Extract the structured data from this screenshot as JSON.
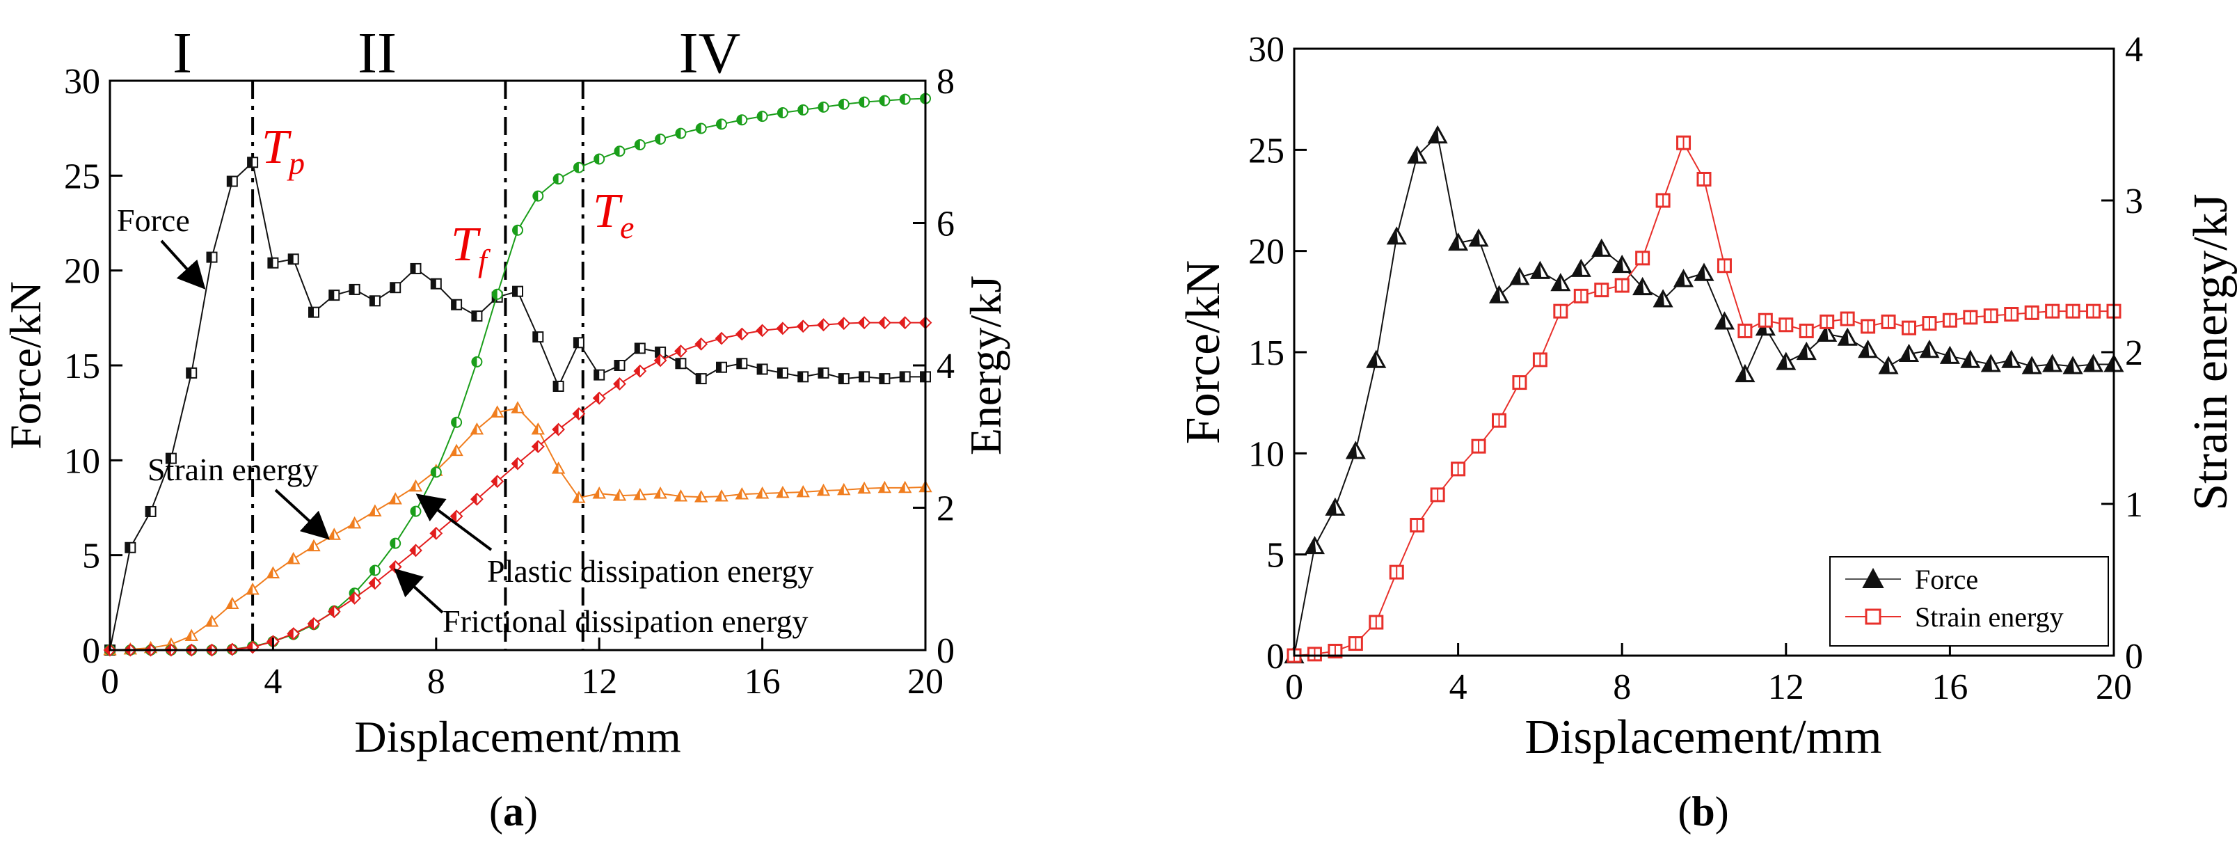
{
  "colors": {
    "force": "#111111",
    "strain": "#f07d1e",
    "plastic": "#1a9e1a",
    "friction": "#e21c1c",
    "strain_b": "#e8302b",
    "annotation_red": "#ee0000"
  },
  "panel_a": {
    "caption": {
      "open": "(",
      "letter": "a",
      "close": ")"
    },
    "regions": [
      "I",
      "II",
      "IV"
    ],
    "annotations": {
      "tp": {
        "main": "T",
        "sub": "p"
      },
      "tf": {
        "main": "T",
        "sub": "f"
      },
      "te": {
        "main": "T",
        "sub": "e"
      },
      "force": "Force",
      "strain": "Strain energy",
      "plastic": "Plastic dissipation energy",
      "friction": "Frictional dissipation energy"
    }
  },
  "panel_b": {
    "caption": {
      "open": "(",
      "letter": "b",
      "close": ")"
    },
    "legend": {
      "force": "Force",
      "strain": "Strain energy"
    }
  },
  "chart_data": [
    {
      "type": "line",
      "panel": "a",
      "xlabel": "Displacement/mm",
      "ylabel": "Force/kN",
      "y2label": "Energy/kJ",
      "xlim": [
        0,
        20
      ],
      "ylim": [
        0,
        30
      ],
      "y2lim": [
        0,
        8
      ],
      "xticks": [
        0,
        4,
        8,
        12,
        16,
        20
      ],
      "yticks": [
        0,
        5,
        10,
        15,
        20,
        25,
        30
      ],
      "y2ticks": [
        0,
        2,
        4,
        6,
        8
      ],
      "stage_boundaries": [
        3.5,
        9.7,
        11.6
      ],
      "series": [
        {
          "name": "Force",
          "axis": "left",
          "x": [
            0,
            0.5,
            1.0,
            1.5,
            2.0,
            2.5,
            3.0,
            3.5,
            4.0,
            4.5,
            5.0,
            5.5,
            6.0,
            6.5,
            7.0,
            7.5,
            8.0,
            8.5,
            9.0,
            9.5,
            10.0,
            10.5,
            11.0,
            11.5,
            12.0,
            12.5,
            13.0,
            13.5,
            14.0,
            14.5,
            15.0,
            15.5,
            16.0,
            16.5,
            17.0,
            17.5,
            18.0,
            18.5,
            19.0,
            19.5,
            20.0
          ],
          "y": [
            0,
            5.4,
            7.3,
            10.1,
            14.6,
            20.7,
            24.7,
            25.7,
            20.4,
            20.6,
            17.8,
            18.7,
            19.0,
            18.4,
            19.1,
            20.1,
            19.3,
            18.2,
            17.6,
            18.6,
            18.9,
            16.5,
            13.9,
            16.2,
            14.5,
            15.0,
            15.9,
            15.7,
            15.1,
            14.3,
            14.9,
            15.1,
            14.8,
            14.6,
            14.4,
            14.6,
            14.3,
            14.4,
            14.3,
            14.4,
            14.4
          ]
        },
        {
          "name": "Strain energy",
          "axis": "right",
          "x": [
            0,
            0.5,
            1.0,
            1.5,
            2.0,
            2.5,
            3.0,
            3.5,
            4.0,
            4.5,
            5.0,
            5.5,
            6.0,
            6.5,
            7.0,
            7.5,
            8.0,
            8.5,
            9.0,
            9.5,
            10.0,
            10.5,
            11.0,
            11.5,
            12.0,
            12.5,
            13.0,
            13.5,
            14.0,
            14.5,
            15.0,
            15.5,
            16.0,
            16.5,
            17.0,
            17.5,
            18.0,
            18.5,
            19.0,
            19.5,
            20.0
          ],
          "y": [
            0,
            0.01,
            0.03,
            0.08,
            0.2,
            0.4,
            0.65,
            0.85,
            1.08,
            1.28,
            1.46,
            1.62,
            1.78,
            1.95,
            2.12,
            2.3,
            2.52,
            2.8,
            3.1,
            3.34,
            3.4,
            3.1,
            2.55,
            2.14,
            2.2,
            2.17,
            2.18,
            2.2,
            2.16,
            2.15,
            2.16,
            2.19,
            2.2,
            2.21,
            2.22,
            2.24,
            2.25,
            2.27,
            2.28,
            2.28,
            2.29
          ]
        },
        {
          "name": "Plastic dissipation energy",
          "axis": "right",
          "x": [
            0,
            0.5,
            1.0,
            1.5,
            2.0,
            2.5,
            3.0,
            3.5,
            4.0,
            4.5,
            5.0,
            5.5,
            6.0,
            6.5,
            7.0,
            7.5,
            8.0,
            8.5,
            9.0,
            9.5,
            10.0,
            10.5,
            11.0,
            11.5,
            12.0,
            12.5,
            13.0,
            13.5,
            14.0,
            14.5,
            15.0,
            15.5,
            16.0,
            16.5,
            17.0,
            17.5,
            18.0,
            18.5,
            19.0,
            19.5,
            20.0
          ],
          "y": [
            0,
            0,
            0,
            0,
            0,
            0,
            0.01,
            0.05,
            0.12,
            0.22,
            0.36,
            0.55,
            0.8,
            1.12,
            1.5,
            1.95,
            2.5,
            3.2,
            4.05,
            5.0,
            5.9,
            6.38,
            6.62,
            6.78,
            6.9,
            7.01,
            7.1,
            7.18,
            7.26,
            7.33,
            7.39,
            7.45,
            7.5,
            7.55,
            7.59,
            7.63,
            7.67,
            7.7,
            7.72,
            7.74,
            7.75
          ]
        },
        {
          "name": "Frictional dissipation energy",
          "axis": "right",
          "x": [
            0,
            0.5,
            1.0,
            1.5,
            2.0,
            2.5,
            3.0,
            3.5,
            4.0,
            4.5,
            5.0,
            5.5,
            6.0,
            6.5,
            7.0,
            7.5,
            8.0,
            8.5,
            9.0,
            9.5,
            10.0,
            10.5,
            11.0,
            11.5,
            12.0,
            12.5,
            13.0,
            13.5,
            14.0,
            14.5,
            15.0,
            15.5,
            16.0,
            16.5,
            17.0,
            17.5,
            18.0,
            18.5,
            19.0,
            19.5,
            20.0
          ],
          "y": [
            0,
            0,
            0,
            0,
            0,
            0,
            0.01,
            0.04,
            0.12,
            0.23,
            0.37,
            0.54,
            0.73,
            0.94,
            1.17,
            1.4,
            1.64,
            1.88,
            2.12,
            2.37,
            2.62,
            2.86,
            3.1,
            3.32,
            3.54,
            3.74,
            3.92,
            4.07,
            4.2,
            4.3,
            4.38,
            4.44,
            4.49,
            4.52,
            4.55,
            4.57,
            4.59,
            4.6,
            4.6,
            4.6,
            4.6
          ]
        }
      ]
    },
    {
      "type": "line",
      "panel": "b",
      "xlabel": "Displacement/mm",
      "ylabel": "Force/kN",
      "y2label": "Strain energy/kJ",
      "xlim": [
        0,
        20
      ],
      "ylim": [
        0,
        30
      ],
      "y2lim": [
        0,
        4
      ],
      "xticks": [
        0,
        4,
        8,
        12,
        16,
        20
      ],
      "yticks": [
        0,
        5,
        10,
        15,
        20,
        25,
        30
      ],
      "y2ticks": [
        0,
        1,
        2,
        3,
        4
      ],
      "legend_position": "bottom-right",
      "series": [
        {
          "name": "Force",
          "axis": "left",
          "x": [
            0,
            0.5,
            1.0,
            1.5,
            2.0,
            2.5,
            3.0,
            3.5,
            4.0,
            4.5,
            5.0,
            5.5,
            6.0,
            6.5,
            7.0,
            7.5,
            8.0,
            8.5,
            9.0,
            9.5,
            10.0,
            10.5,
            11.0,
            11.5,
            12.0,
            12.5,
            13.0,
            13.5,
            14.0,
            14.5,
            15.0,
            15.5,
            16.0,
            16.5,
            17.0,
            17.5,
            18.0,
            18.5,
            19.0,
            19.5,
            20.0
          ],
          "y": [
            0,
            5.4,
            7.3,
            10.1,
            14.6,
            20.7,
            24.7,
            25.7,
            20.4,
            20.6,
            17.8,
            18.7,
            19.0,
            18.4,
            19.1,
            20.1,
            19.3,
            18.2,
            17.6,
            18.6,
            18.9,
            16.5,
            13.9,
            16.2,
            14.5,
            15.0,
            15.9,
            15.7,
            15.1,
            14.3,
            14.9,
            15.1,
            14.8,
            14.6,
            14.4,
            14.6,
            14.3,
            14.4,
            14.3,
            14.4,
            14.4
          ]
        },
        {
          "name": "Strain energy",
          "axis": "right",
          "x": [
            0,
            0.5,
            1.0,
            1.5,
            2.0,
            2.5,
            3.0,
            3.5,
            4.0,
            4.5,
            5.0,
            5.5,
            6.0,
            6.5,
            7.0,
            7.5,
            8.0,
            8.5,
            9.0,
            9.5,
            10.0,
            10.5,
            11.0,
            11.5,
            12.0,
            12.5,
            13.0,
            13.5,
            14.0,
            14.5,
            15.0,
            15.5,
            16.0,
            16.5,
            17.0,
            17.5,
            18.0,
            18.5,
            19.0,
            19.5,
            20.0
          ],
          "y": [
            0,
            0.01,
            0.03,
            0.08,
            0.22,
            0.55,
            0.86,
            1.06,
            1.23,
            1.38,
            1.55,
            1.8,
            1.95,
            2.27,
            2.37,
            2.41,
            2.44,
            2.62,
            3.0,
            3.38,
            3.14,
            2.57,
            2.14,
            2.21,
            2.18,
            2.14,
            2.2,
            2.22,
            2.17,
            2.2,
            2.16,
            2.19,
            2.21,
            2.23,
            2.24,
            2.25,
            2.26,
            2.27,
            2.27,
            2.27,
            2.27
          ]
        }
      ]
    }
  ]
}
